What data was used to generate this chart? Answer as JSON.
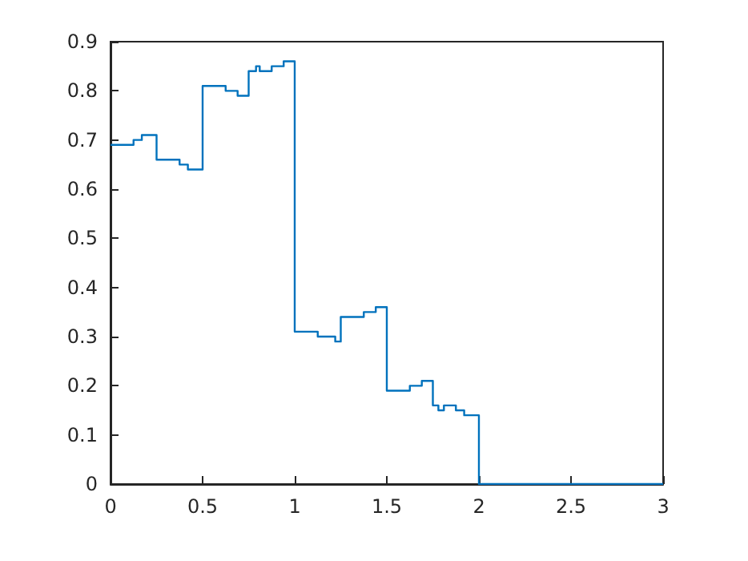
{
  "chart_data": {
    "type": "step",
    "x": [
      0,
      0.06,
      0.1,
      0.125,
      0.17,
      0.25,
      0.28,
      0.31,
      0.375,
      0.42,
      0.5,
      0.56,
      0.6,
      0.625,
      0.69,
      0.75,
      0.79,
      0.81,
      0.875,
      0.9,
      0.94,
      0.96,
      1.0,
      1.06,
      1.125,
      1.19,
      1.22,
      1.25,
      1.31,
      1.36,
      1.375,
      1.44,
      1.48,
      1.5,
      1.55,
      1.58,
      1.625,
      1.65,
      1.69,
      1.75,
      1.78,
      1.81,
      1.84,
      1.875,
      1.9,
      1.92,
      2.0,
      3.0
    ],
    "series": [
      {
        "color": "#0072bd",
        "values": [
          0.69,
          0.69,
          0.69,
          0.7,
          0.71,
          0.66,
          0.66,
          0.66,
          0.65,
          0.64,
          0.81,
          0.81,
          0.81,
          0.8,
          0.79,
          0.84,
          0.85,
          0.84,
          0.85,
          0.85,
          0.86,
          0.86,
          0.31,
          0.31,
          0.3,
          0.3,
          0.29,
          0.34,
          0.34,
          0.34,
          0.35,
          0.36,
          0.36,
          0.19,
          0.19,
          0.19,
          0.2,
          0.2,
          0.21,
          0.16,
          0.15,
          0.16,
          0.16,
          0.15,
          0.15,
          0.14,
          0,
          0
        ]
      }
    ],
    "xlim": [
      0,
      3
    ],
    "xticks": [
      0,
      0.5,
      1,
      1.5,
      2,
      2.5,
      3
    ],
    "ylim": [
      0,
      0.9
    ],
    "yticks": [
      0,
      0.1,
      0.2,
      0.3,
      0.4,
      0.5,
      0.6,
      0.7,
      0.8,
      0.9
    ],
    "grid": false
  }
}
